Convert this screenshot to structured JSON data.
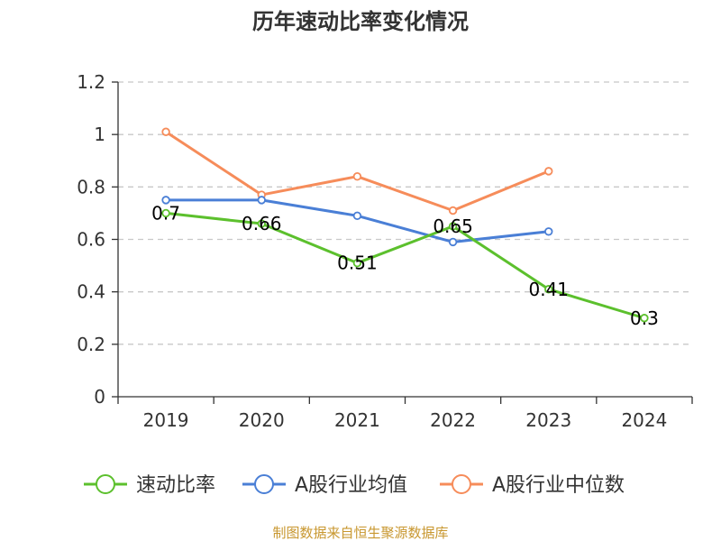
{
  "chart_data": {
    "type": "line",
    "title": "历年速动比率变化情况",
    "categories": [
      "2019",
      "2020",
      "2021",
      "2022",
      "2023",
      "2024"
    ],
    "ylim": [
      0,
      1.2
    ],
    "yticks": [
      "0",
      "0.2",
      "0.4",
      "0.6",
      "0.8",
      "1",
      "1.2"
    ],
    "grid": true,
    "legend_position": "bottom",
    "series": [
      {
        "name": "速动比率",
        "color": "#5cc02d",
        "values": [
          0.7,
          0.66,
          0.51,
          0.65,
          0.41,
          0.3
        ],
        "labels": [
          "0.7",
          "0.66",
          "0.51",
          "0.65",
          "0.41",
          "0.3"
        ]
      },
      {
        "name": "A股行业均值",
        "color": "#4a7fd6",
        "values": [
          0.75,
          0.75,
          0.69,
          0.59,
          0.63,
          null
        ]
      },
      {
        "name": "A股行业中位数",
        "color": "#f68c5a",
        "values": [
          1.01,
          0.77,
          0.84,
          0.71,
          0.86,
          null
        ]
      }
    ]
  },
  "source": "制图数据来自恒生聚源数据库"
}
